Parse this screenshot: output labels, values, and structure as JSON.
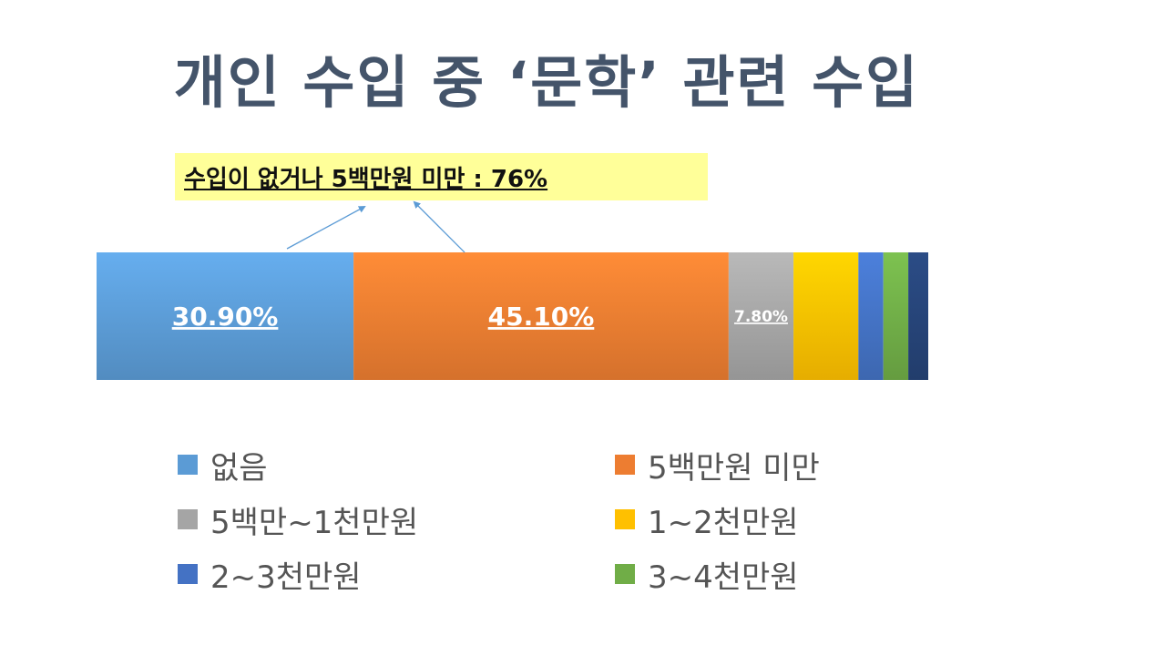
{
  "title": "개인 수입 중 ‘문학’ 관련 수입",
  "callout": {
    "text": "수입이 없거나 5백만원 미만 : 76%"
  },
  "chart_data": {
    "type": "bar",
    "orientation": "horizontal",
    "stacked": true,
    "percent_scale": [
      0,
      100
    ],
    "categories": [
      ""
    ],
    "series": [
      {
        "name": "없음",
        "value": 30.9,
        "label": "30.90%",
        "color": "#5b9bd5"
      },
      {
        "name": "5백만원 미만",
        "value": 45.1,
        "label": "45.10%",
        "color": "#ed7d31"
      },
      {
        "name": "5백만~1천만원",
        "value": 7.8,
        "label": "7.80%",
        "color": "#a5a5a5"
      },
      {
        "name": "1~2천만원",
        "value": 7.8,
        "label": "",
        "color": "#ffc000"
      },
      {
        "name": "2~3천만원",
        "value": 3.0,
        "label": "",
        "color": "#4472c4"
      },
      {
        "name": "3~4천만원",
        "value": 3.0,
        "label": "",
        "color": "#70ad47"
      },
      {
        "name": "",
        "value": 2.4,
        "label": "",
        "color": "#264478"
      }
    ],
    "legend_position": "bottom",
    "grid": false,
    "annotation": {
      "text": "수입이 없거나 5백만원 미만 : 76%",
      "points_to": [
        "없음",
        "5백만원 미만"
      ]
    }
  }
}
